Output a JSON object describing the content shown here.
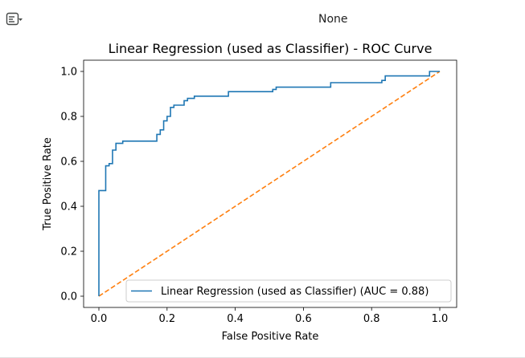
{
  "output": {
    "toggle_icon": "output-collapse-icon",
    "text": "None"
  },
  "chart_data": {
    "type": "line",
    "title": "Linear Regression (used as Classifier) - ROC Curve",
    "xlabel": "False Positive Rate",
    "ylabel": "True Positive Rate",
    "xlim": [
      0.0,
      1.0
    ],
    "ylim": [
      0.0,
      1.0
    ],
    "x_ticks": [
      "0.0",
      "0.2",
      "0.4",
      "0.6",
      "0.8",
      "1.0"
    ],
    "y_ticks": [
      "0.0",
      "0.2",
      "0.4",
      "0.6",
      "0.8",
      "1.0"
    ],
    "grid": false,
    "legend_position": "lower right",
    "series": [
      {
        "name": "Linear Regression (used as Classifier) (AUC = 0.88)",
        "color": "#1f77b4",
        "style": "solid",
        "x": [
          0.0,
          0.0,
          0.0,
          0.02,
          0.02,
          0.03,
          0.03,
          0.04,
          0.04,
          0.05,
          0.05,
          0.07,
          0.07,
          0.17,
          0.17,
          0.18,
          0.18,
          0.19,
          0.19,
          0.2,
          0.2,
          0.21,
          0.21,
          0.22,
          0.22,
          0.25,
          0.25,
          0.26,
          0.26,
          0.28,
          0.28,
          0.38,
          0.38,
          0.51,
          0.51,
          0.52,
          0.52,
          0.68,
          0.68,
          0.83,
          0.83,
          0.84,
          0.84,
          0.97,
          0.97,
          1.0
        ],
        "y": [
          0.0,
          0.47,
          0.47,
          0.47,
          0.58,
          0.58,
          0.59,
          0.59,
          0.65,
          0.65,
          0.68,
          0.68,
          0.69,
          0.69,
          0.72,
          0.72,
          0.74,
          0.74,
          0.78,
          0.78,
          0.8,
          0.8,
          0.84,
          0.84,
          0.85,
          0.85,
          0.87,
          0.87,
          0.88,
          0.88,
          0.89,
          0.89,
          0.91,
          0.91,
          0.92,
          0.92,
          0.93,
          0.93,
          0.95,
          0.95,
          0.96,
          0.96,
          0.98,
          0.98,
          1.0,
          1.0
        ]
      },
      {
        "name": "",
        "color": "#ff7f0e",
        "style": "dashed",
        "x": [
          0.0,
          1.0
        ],
        "y": [
          0.0,
          1.0
        ]
      }
    ]
  }
}
